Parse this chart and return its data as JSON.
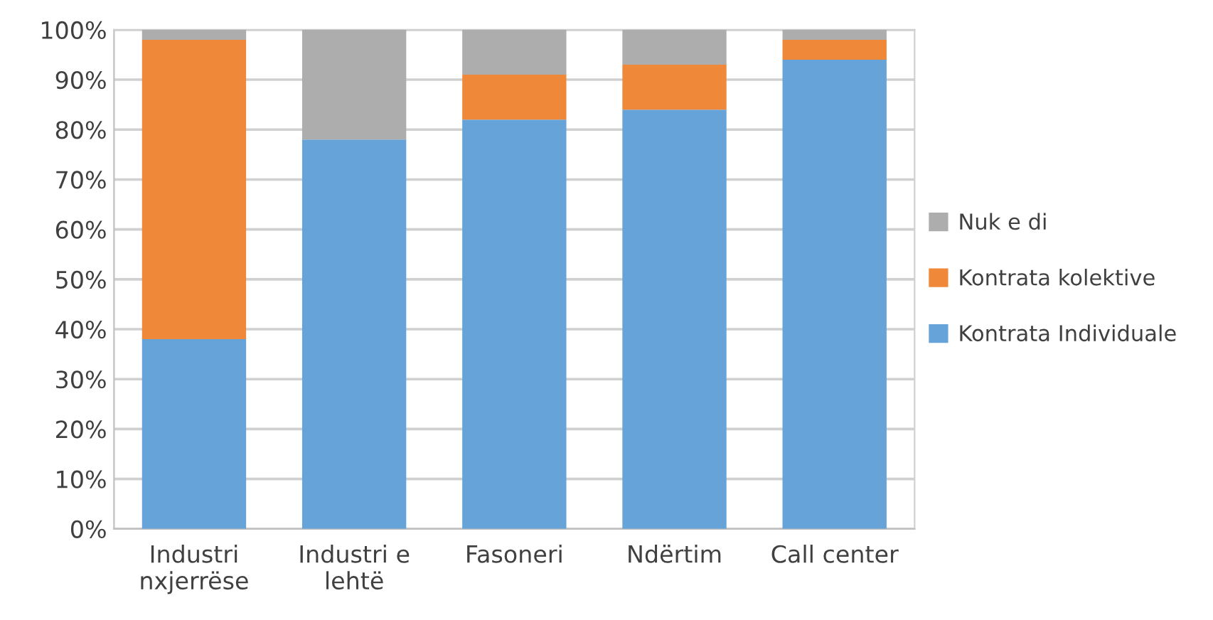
{
  "chart_data": {
    "type": "bar",
    "stacked": true,
    "categories": [
      "Industri\nnxjerrëse",
      "Industri e\nlehtë",
      "Fasoneri",
      "Ndërtim",
      "Call center"
    ],
    "series": [
      {
        "name": "Kontrata Individuale",
        "color": "#65a3d8",
        "values": [
          38,
          78,
          82,
          84,
          94
        ]
      },
      {
        "name": "Kontrata kolektive",
        "color": "#f0883a",
        "values": [
          60,
          0,
          9,
          9,
          4
        ]
      },
      {
        "name": "Nuk e di",
        "color": "#adadad",
        "values": [
          2,
          22,
          9,
          7,
          2
        ]
      }
    ],
    "ylim": [
      0,
      100
    ],
    "yticks": [
      {
        "value": 0,
        "label": "0%"
      },
      {
        "value": 10,
        "label": "10%"
      },
      {
        "value": 20,
        "label": "20%"
      },
      {
        "value": 30,
        "label": "30%"
      },
      {
        "value": 40,
        "label": "40%"
      },
      {
        "value": 50,
        "label": "50%"
      },
      {
        "value": 60,
        "label": "60%"
      },
      {
        "value": 70,
        "label": "70%"
      },
      {
        "value": 80,
        "label": "80%"
      },
      {
        "value": 90,
        "label": "90%"
      },
      {
        "value": 100,
        "label": "100%"
      }
    ],
    "grid": "y",
    "legend": "right"
  }
}
